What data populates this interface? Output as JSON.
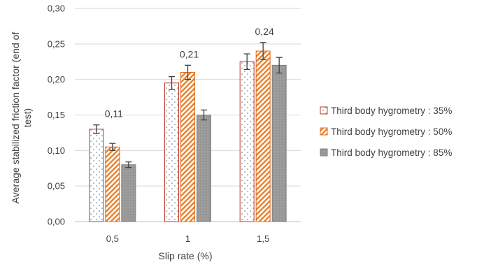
{
  "chart_data": {
    "type": "bar",
    "xlabel": "Slip rate (%)",
    "ylabel": "Average stabilized friction factor (end of test)",
    "ylim": [
      0,
      0.3
    ],
    "yticks": [
      "0,00",
      "0,05",
      "0,10",
      "0,15",
      "0,20",
      "0,25",
      "0,30"
    ],
    "categories": [
      "0,5",
      "1",
      "1,5"
    ],
    "grid": true,
    "legend": "right",
    "series": [
      {
        "name": "Third body hygrometry : 35%",
        "values": [
          0.13,
          0.195,
          0.225
        ],
        "errors": [
          0.006,
          0.009,
          0.011
        ],
        "color": "#c0392b",
        "pattern": "dots"
      },
      {
        "name": "Third body hygrometry : 50%",
        "values": [
          0.105,
          0.21,
          0.24
        ],
        "errors": [
          0.005,
          0.01,
          0.012
        ],
        "color": "#e06c1a",
        "pattern": "stripes"
      },
      {
        "name": "Third body hygrometry : 85%",
        "values": [
          0.08,
          0.15,
          0.22
        ],
        "errors": [
          0.004,
          0.007,
          0.011
        ],
        "color": "#808080",
        "pattern": "grey"
      }
    ],
    "annotations": [
      {
        "category": "0,5",
        "text": "0,11"
      },
      {
        "category": "1",
        "text": "0,21"
      },
      {
        "category": "1,5",
        "text": "0,24"
      }
    ]
  }
}
